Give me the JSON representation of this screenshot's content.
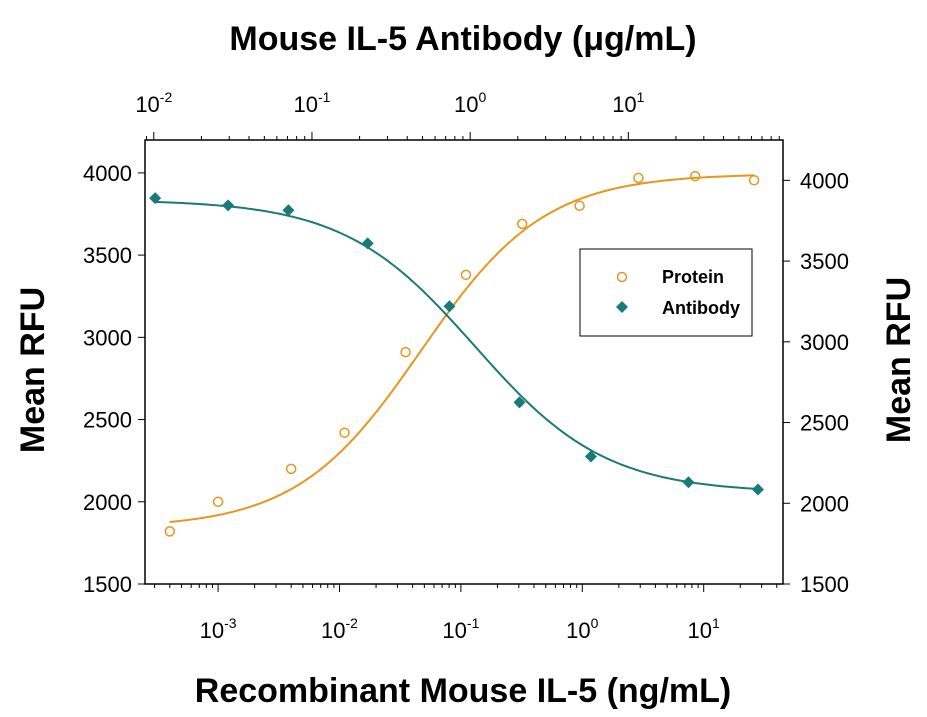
{
  "chart_data": {
    "type": "scatter",
    "title": "Mouse IL-5 Antibody (μg/mL)",
    "xlabel": "Recombinant Mouse IL-5 (ng/mL)",
    "ylabel_left": "Mean RFU",
    "ylabel_right": "Mean RFU",
    "x_scale": "log",
    "x_bottom_range": [
      0.00025,
      45
    ],
    "x_top_range": [
      0.0088,
      95
    ],
    "x_bottom_ticks": [
      {
        "value": 0.001,
        "base": "10",
        "exp": "-3"
      },
      {
        "value": 0.01,
        "base": "10",
        "exp": "-2"
      },
      {
        "value": 0.1,
        "base": "10",
        "exp": "-1"
      },
      {
        "value": 1,
        "base": "10",
        "exp": "0"
      },
      {
        "value": 10,
        "base": "10",
        "exp": "1"
      }
    ],
    "x_top_ticks": [
      {
        "value": 0.01,
        "base": "10",
        "exp": "-2"
      },
      {
        "value": 0.1,
        "base": "10",
        "exp": "-1"
      },
      {
        "value": 1,
        "base": "10",
        "exp": "0"
      },
      {
        "value": 10,
        "base": "10",
        "exp": "1"
      }
    ],
    "y_left_range": [
      1500,
      4200
    ],
    "y_left_ticks": [
      "1500",
      "2000",
      "2500",
      "3000",
      "3500",
      "4000"
    ],
    "y_right_range": [
      1500,
      4250
    ],
    "y_right_ticks": [
      "1500",
      "2000",
      "2500",
      "3000",
      "3500",
      "4000"
    ],
    "grid": false,
    "legend_position": "right",
    "series": [
      {
        "name": "Protein",
        "marker": "open-circle",
        "color": "#E8961E",
        "axis": "bottom-left",
        "x": [
          0.0004,
          0.001,
          0.004,
          0.011,
          0.035,
          0.11,
          0.32,
          0.95,
          2.9,
          8.5,
          26
        ],
        "y": [
          1820,
          2000,
          2200,
          2420,
          2910,
          3380,
          3690,
          3800,
          3970,
          3980,
          3955
        ],
        "fit": {
          "bottom": 1840,
          "top": 3995,
          "log_ec50": -1.33,
          "hill": 0.85
        }
      },
      {
        "name": "Antibody",
        "marker": "filled-diamond",
        "color": "#1A7A78",
        "axis": "top-right",
        "x": [
          0.0102,
          0.0295,
          0.071,
          0.225,
          0.74,
          2.05,
          5.8,
          24,
          66
        ],
        "y": [
          3890,
          3845,
          3815,
          3610,
          3220,
          2625,
          2290,
          2130,
          2085
        ],
        "fit": {
          "bottom": 2065,
          "top": 3880,
          "log_ec50": 0.03,
          "hill": -1.05
        }
      }
    ]
  }
}
